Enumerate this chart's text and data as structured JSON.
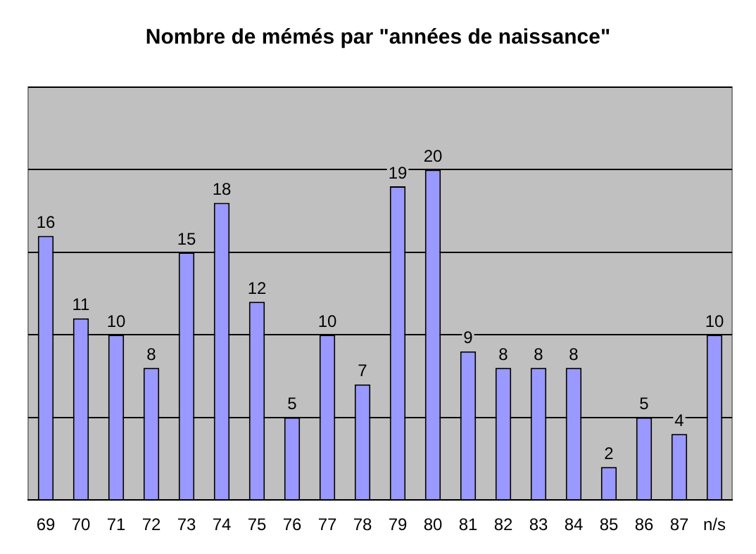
{
  "chart_data": {
    "type": "bar",
    "title": "Nombre de mémés par \"années de naissance\"",
    "categories": [
      "69",
      "70",
      "71",
      "72",
      "73",
      "74",
      "75",
      "76",
      "77",
      "78",
      "79",
      "80",
      "81",
      "82",
      "83",
      "84",
      "85",
      "86",
      "87",
      "n/s"
    ],
    "values": [
      16,
      11,
      10,
      8,
      15,
      18,
      12,
      5,
      10,
      7,
      19,
      20,
      9,
      8,
      8,
      8,
      2,
      5,
      4,
      10
    ],
    "color": "#9999ff",
    "ylim": [
      0,
      25
    ],
    "yticks": [
      {
        "value": 0,
        "label": null
      },
      {
        "value": 5,
        "label": null
      },
      {
        "value": 10,
        "label": null
      },
      {
        "value": 15,
        "label": null
      },
      {
        "value": 20,
        "label": null
      },
      {
        "value": 25,
        "label": null
      }
    ],
    "tick_labels": "x",
    "grid": "y",
    "legend": false,
    "data_labels": true
  }
}
